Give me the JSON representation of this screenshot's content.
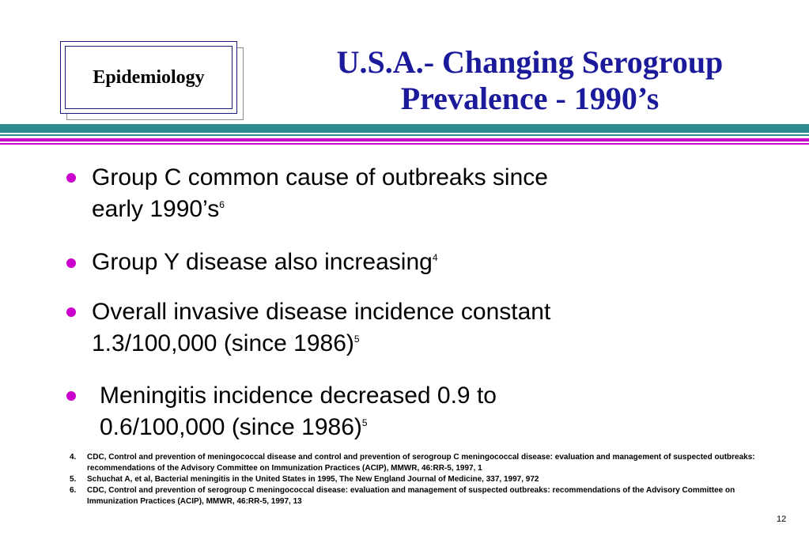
{
  "section_label": "Epidemiology",
  "title_line1": "U.S.A.- Changing Serogroup",
  "title_line2": "Prevalence - 1990’s",
  "bullets": [
    {
      "line1": "Group C common cause of outbreaks since",
      "line2": "early 1990’s",
      "ref": "6"
    },
    {
      "line1": "Group Y disease also increasing",
      "line2": "",
      "ref": "4"
    },
    {
      "line1": "Overall invasive disease incidence constant",
      "line2": "1.3/100,000 (since 1986)",
      "ref": "5"
    },
    {
      "line1": "Meningitis incidence decreased 0.9 to",
      "line2": "0.6/100,000 (since 1986)",
      "ref": "5"
    }
  ],
  "references": [
    {
      "num": "4.",
      "text": "CDC, Control and prevention of meningococcal disease and control and prevention of serogroup C meningococcal disease: evaluation and management of suspected outbreaks: recommendations of the Advisory Committee on Immunization Practices (ACIP),  MMWR, 46:RR-5, 1997, 1"
    },
    {
      "num": "5.",
      "text": "Schuchat A, et al, Bacterial meningitis in the United States in 1995, The New England Journal of Medicine, 337, 1997, 972"
    },
    {
      "num": "6.",
      "text": "CDC, Control and prevention of serogroup C meningococcal disease: evaluation and management of suspected outbreaks: recommendations of the Advisory Committee on Immunization Practices (ACIP), MMWR, 46:RR-5, 1997, 13"
    }
  ],
  "page_number": "12",
  "colors": {
    "title": "#1a1a9a",
    "bullet": "#cc00cc",
    "rule_teal": "#2e8b8f",
    "rule_magenta": "#cc00cc"
  }
}
